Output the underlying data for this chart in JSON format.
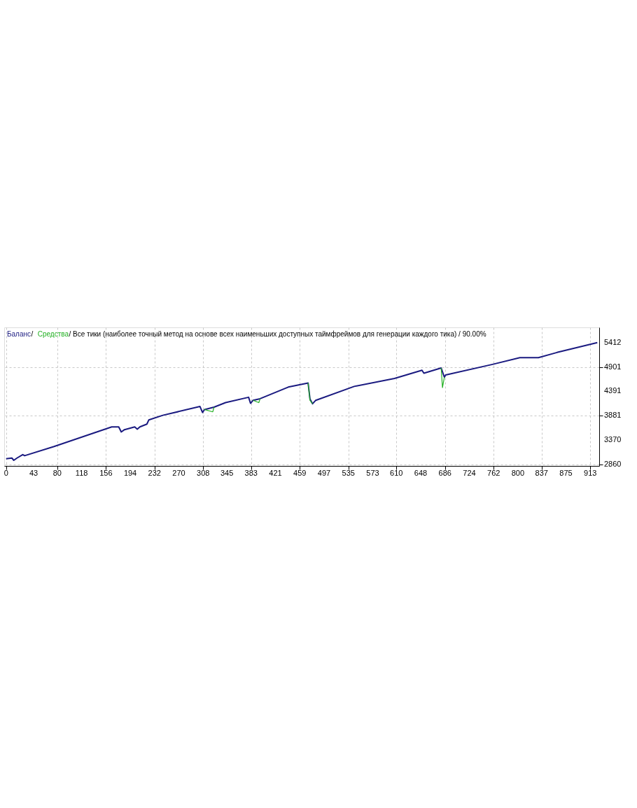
{
  "chart_data": {
    "type": "line",
    "series": [
      {
        "name": "Средства",
        "color": "#22b022",
        "x": [
          310,
          323,
          325,
          330,
          386,
          395,
          397,
          420,
          472,
          475,
          479,
          500,
          680,
          682,
          685
        ],
        "values": [
          4010,
          3962,
          4060,
          null,
          4204,
          4155,
          4237,
          null,
          4567,
          4200,
          4131,
          null,
          4880,
          4470,
          4687
        ]
      },
      {
        "name": "Баланс",
        "color": "#1a1a80",
        "x": [
          0,
          9,
          12,
          17,
          26,
          29,
          75,
          165,
          176,
          180,
          185,
          201,
          205,
          209,
          220,
          223,
          245,
          303,
          307,
          310,
          325,
          343,
          379,
          382,
          386,
          397,
          441,
          472,
          475,
          479,
          484,
          544,
          607,
          650,
          653,
          680,
          685,
          687,
          759,
          803,
          832,
          861,
          924
        ],
        "values": [
          2980,
          2995,
          2947,
          2995,
          3067,
          3044,
          3237,
          3647,
          3647,
          3541,
          3589,
          3647,
          3600,
          3647,
          3705,
          3792,
          3890,
          4074,
          3948,
          4010,
          4060,
          4155,
          4267,
          4140,
          4204,
          4237,
          4480,
          4567,
          4228,
          4131,
          4204,
          4494,
          4662,
          4832,
          4770,
          4880,
          4687,
          4735,
          4952,
          5097,
          5097,
          5205,
          5412
        ]
      }
    ],
    "annotations": [
      "/",
      "/ Все тики (наиболее точный метод на основе всех наименьших доступных таймфреймов для генерации каждого тика) / 90.00%"
    ],
    "xlim": [
      -3,
      927
    ],
    "xticks": [
      0,
      43,
      80,
      118,
      156,
      194,
      232,
      270,
      308,
      345,
      383,
      421,
      459,
      497,
      535,
      573,
      610,
      648,
      686,
      724,
      762,
      800,
      837,
      875,
      913
    ],
    "ylim": [
      2830,
      5730
    ],
    "yticks": [
      2860,
      3370,
      3881,
      4391,
      4901,
      5412
    ],
    "grid": true,
    "legend": "top left",
    "line_style": "solid",
    "marker": "none"
  }
}
